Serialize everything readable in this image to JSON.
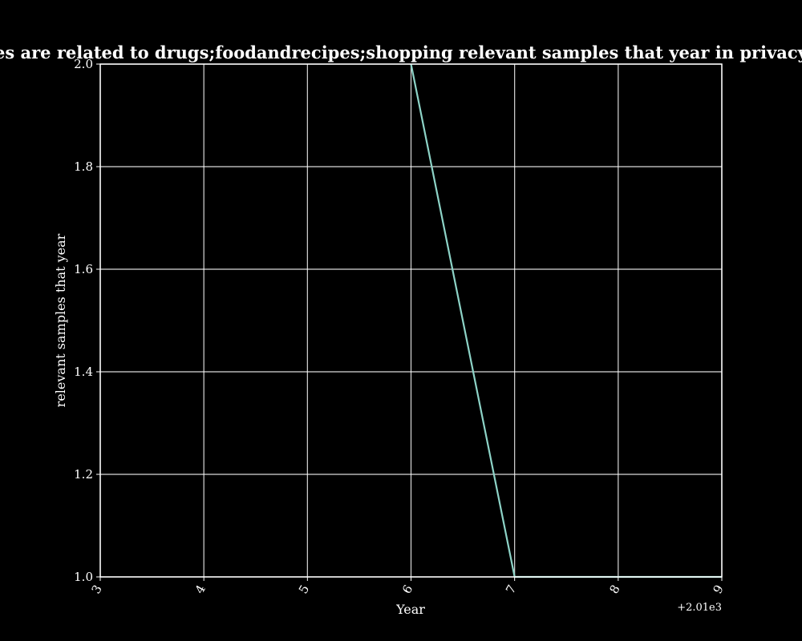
{
  "chart_data": {
    "type": "line",
    "title": "n categories are related to drugs;foodandrecipes;shopping relevant samples that year in privacy policies b",
    "xlabel": "Year",
    "ylabel": "relevant samples that year",
    "x_offset_label": "+2.01e3",
    "xlim": [
      3,
      9
    ],
    "ylim": [
      1.0,
      2.0
    ],
    "x_ticks": [
      "3",
      "4",
      "5",
      "6",
      "7",
      "8",
      "9"
    ],
    "y_ticks": [
      "1.0",
      "1.2",
      "1.4",
      "1.6",
      "1.8",
      "2.0"
    ],
    "grid": true,
    "series": [
      {
        "x": [
          6,
          7,
          8,
          9
        ],
        "y": [
          2,
          1,
          1,
          1
        ],
        "color": "#8dd3c7"
      }
    ]
  },
  "colors": {
    "background": "#000000",
    "foreground": "#ffffff"
  }
}
